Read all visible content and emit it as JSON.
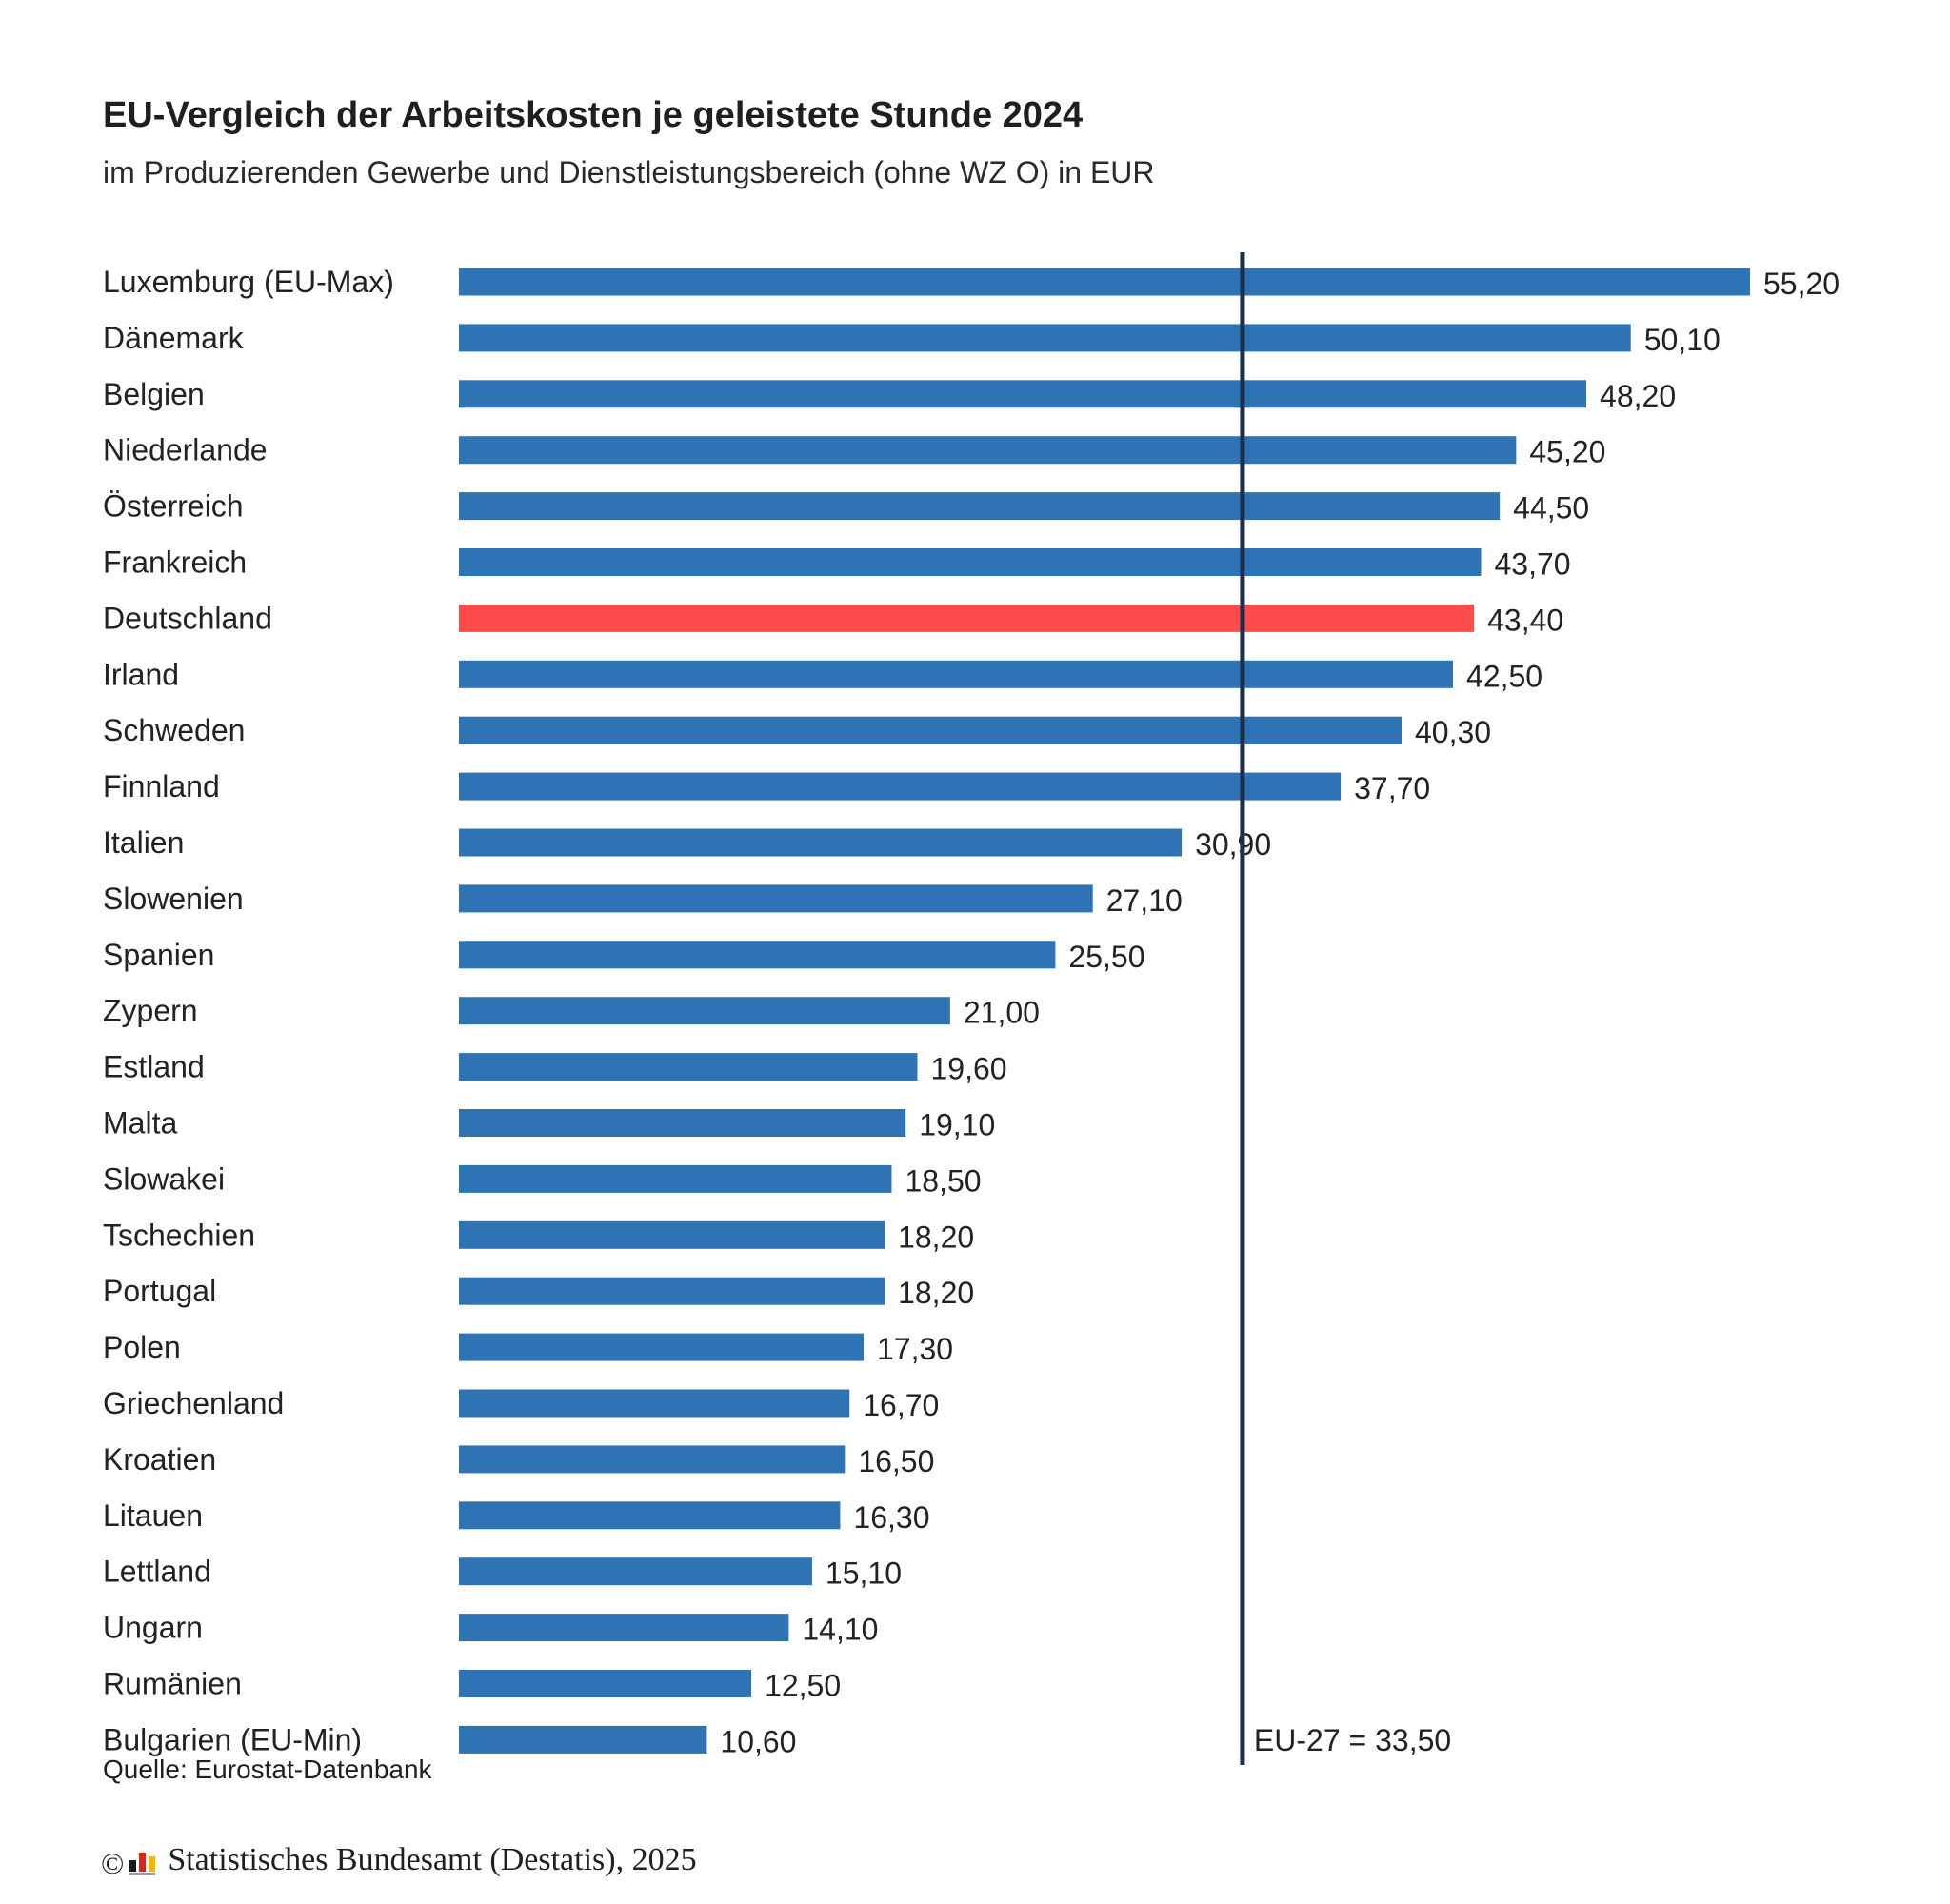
{
  "chart_data": {
    "type": "bar",
    "orientation": "horizontal",
    "title": "EU-Vergleich der Arbeitskosten je geleistete Stunde 2024",
    "subtitle": "im Produzierenden Gewerbe und Dienstleistungsbereich (ohne WZ O) in EUR",
    "categories": [
      "Luxemburg (EU-Max)",
      "Dänemark",
      "Belgien",
      "Niederlande",
      "Österreich",
      "Frankreich",
      "Deutschland",
      "Irland",
      "Schweden",
      "Finnland",
      "Italien",
      "Slowenien",
      "Spanien",
      "Zypern",
      "Estland",
      "Malta",
      "Slowakei",
      "Tschechien",
      "Portugal",
      "Polen",
      "Griechenland",
      "Kroatien",
      "Litauen",
      "Lettland",
      "Ungarn",
      "Rumänien",
      "Bulgarien (EU-Min)"
    ],
    "values": [
      55.2,
      50.1,
      48.2,
      45.2,
      44.5,
      43.7,
      43.4,
      42.5,
      40.3,
      37.7,
      30.9,
      27.1,
      25.5,
      21.0,
      19.6,
      19.1,
      18.5,
      18.2,
      18.2,
      17.3,
      16.7,
      16.5,
      16.3,
      15.1,
      14.1,
      12.5,
      10.6
    ],
    "value_labels": [
      "55,20",
      "50,10",
      "48,20",
      "45,20",
      "44,50",
      "43,70",
      "43,40",
      "42,50",
      "40,30",
      "37,70",
      "30,90",
      "27,10",
      "25,50",
      "21,00",
      "19,60",
      "19,10",
      "18,50",
      "18,20",
      "18,20",
      "17,30",
      "16,70",
      "16,50",
      "16,30",
      "15,10",
      "14,10",
      "12,50",
      "10,60"
    ],
    "highlight_category": "Deutschland",
    "reference_line": {
      "value": 33.5,
      "label": "EU-27 = 33,50"
    },
    "xlim": [
      0,
      55.2
    ],
    "grid": false,
    "legend": "none",
    "colors": {
      "bar": "#2e74b5",
      "highlight": "#ff4b4b",
      "reference_line": "#1c2f4a"
    }
  },
  "source_note": "Quelle: Eurostat-Datenbank",
  "footer": {
    "copyright_symbol": "©",
    "logo_icon": "destatis-bars-icon",
    "credit": "Statistisches Bundesamt (Destatis), 2025"
  }
}
